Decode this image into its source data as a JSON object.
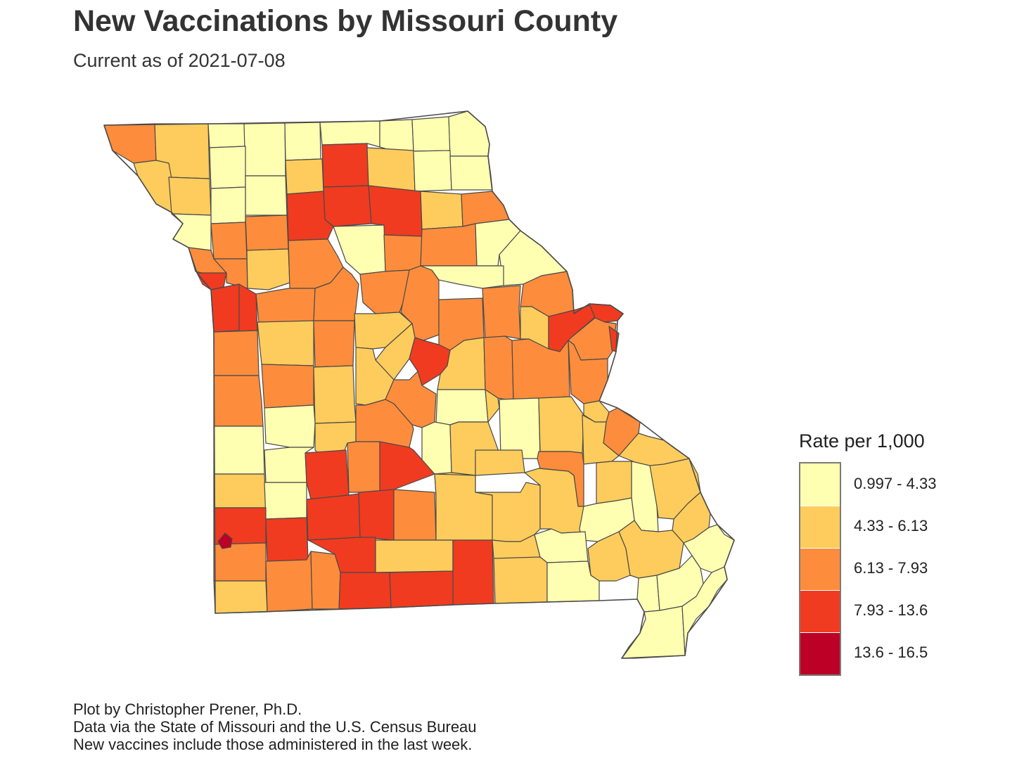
{
  "title": "New Vaccinations by Missouri County",
  "subtitle": "Current as of 2021-07-08",
  "legend": {
    "title": "Rate per 1,000",
    "classes": [
      {
        "label": "0.997 - 4.33",
        "color": "#ffffb2"
      },
      {
        "label": "4.33 - 6.13",
        "color": "#fecc5c"
      },
      {
        "label": "6.13 - 7.93",
        "color": "#fd8d3c"
      },
      {
        "label": "7.93 - 13.6",
        "color": "#f03b20"
      },
      {
        "label": "13.6 - 16.5",
        "color": "#bd0026"
      }
    ]
  },
  "caption": [
    "Plot by Christopher Prener, Ph.D.",
    "Data via the State of Missouri and the U.S. Census Bureau",
    "New vaccines include those administered in the last week."
  ],
  "map_style": {
    "border_color": "#4a4a4a",
    "background": "#ffffff"
  }
}
